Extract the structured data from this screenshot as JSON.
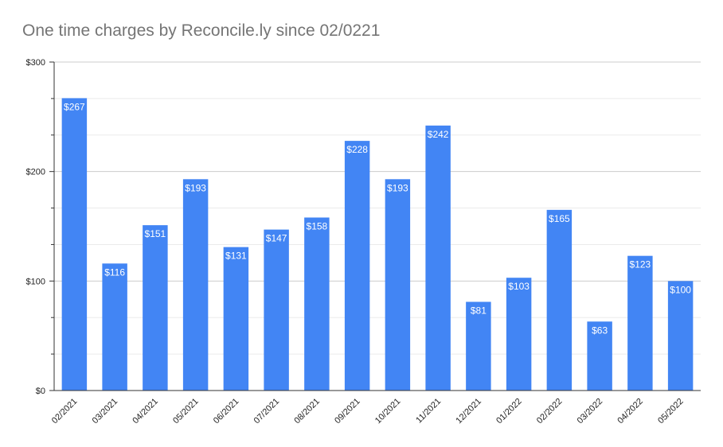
{
  "chart_data": {
    "type": "bar",
    "title": "One time charges by Reconcile.ly since 02/0221",
    "xlabel": "",
    "ylabel": "",
    "categories": [
      "02/2021",
      "03/2021",
      "04/2021",
      "05/2021",
      "06/2021",
      "07/2021",
      "08/2021",
      "09/2021",
      "10/2021",
      "11/2021",
      "12/2021",
      "01/2022",
      "02/2022",
      "03/2022",
      "04/2022",
      "05/2022"
    ],
    "values": [
      267,
      116,
      151,
      193,
      131,
      147,
      158,
      228,
      193,
      242,
      81,
      103,
      165,
      63,
      123,
      100
    ],
    "data_labels": [
      "$267",
      "$116",
      "$151",
      "$193",
      "$131",
      "$147",
      "$158",
      "$228",
      "$193",
      "$242",
      "$81",
      "$103",
      "$165",
      "$63",
      "$123",
      "$100"
    ],
    "y_ticks": [
      0,
      100,
      200,
      300
    ],
    "y_tick_labels": [
      "$0",
      "$100",
      "$200",
      "$300"
    ],
    "ylim": [
      0,
      300
    ],
    "grid": true,
    "legend": "none",
    "colors": {
      "bar": "#4285F4",
      "major_grid": "#cccccc",
      "minor_grid": "#ebebeb",
      "axis": "#333333",
      "title": "#757575"
    }
  }
}
